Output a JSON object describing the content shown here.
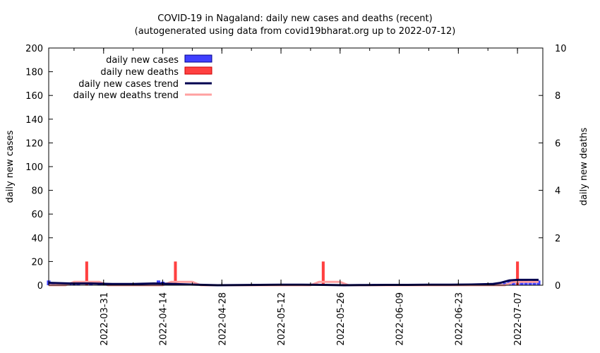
{
  "chart_data": {
    "type": "bar",
    "title": "COVID-19 in Nagaland: daily new cases and deaths (recent)",
    "subtitle": "(autogenerated using data from covid19bharat.org up to 2022-07-12)",
    "ylabel": "daily new cases",
    "y2label": "daily new deaths",
    "ylim": [
      0,
      200
    ],
    "y2lim": [
      0,
      10
    ],
    "yticks": [
      "0",
      "20",
      "40",
      "60",
      "80",
      "100",
      "120",
      "140",
      "160",
      "180",
      "200"
    ],
    "y2ticks": [
      "0",
      "2",
      "4",
      "6",
      "8",
      "10"
    ],
    "x_start": "2022-03-18",
    "x_end": "2022-07-13",
    "xticks": [
      "2022-03-31",
      "2022-04-14",
      "2022-04-28",
      "2022-05-12",
      "2022-05-26",
      "2022-06-09",
      "2022-06-23",
      "2022-07-07"
    ],
    "grid": false,
    "legend_position": "top-left",
    "legend": {
      "cases": "daily new cases",
      "deaths": "daily new deaths",
      "cases_trend": "daily new cases trend",
      "deaths_trend": "daily new deaths trend"
    },
    "colors": {
      "cases": "#4040ff",
      "deaths": "#ff4040",
      "cases_trend": "#000050",
      "deaths_trend": "#ffa0a0"
    },
    "cases": [
      [
        "2022-03-18",
        4
      ],
      [
        "2022-03-19",
        2
      ],
      [
        "2022-03-23",
        1
      ],
      [
        "2022-03-24",
        2
      ],
      [
        "2022-03-25",
        1
      ],
      [
        "2022-03-28",
        1
      ],
      [
        "2022-03-30",
        1
      ],
      [
        "2022-04-01",
        1
      ],
      [
        "2022-04-05",
        1
      ],
      [
        "2022-04-08",
        1
      ],
      [
        "2022-04-10",
        1
      ],
      [
        "2022-04-12",
        1
      ],
      [
        "2022-04-13",
        4
      ],
      [
        "2022-04-14",
        3
      ],
      [
        "2022-04-19",
        1
      ],
      [
        "2022-04-20",
        1
      ],
      [
        "2022-05-08",
        1
      ],
      [
        "2022-05-10",
        1
      ],
      [
        "2022-05-13",
        1
      ],
      [
        "2022-05-19",
        1
      ],
      [
        "2022-06-03",
        1
      ],
      [
        "2022-06-07",
        1
      ],
      [
        "2022-06-14",
        1
      ],
      [
        "2022-06-20",
        1
      ],
      [
        "2022-06-23",
        1
      ],
      [
        "2022-07-01",
        1
      ],
      [
        "2022-07-03",
        1
      ],
      [
        "2022-07-04",
        2
      ],
      [
        "2022-07-05",
        4
      ],
      [
        "2022-07-06",
        5
      ],
      [
        "2022-07-07",
        4
      ],
      [
        "2022-07-08",
        4
      ],
      [
        "2022-07-09",
        5
      ],
      [
        "2022-07-10",
        3
      ],
      [
        "2022-07-11",
        4
      ],
      [
        "2022-07-12",
        4
      ]
    ],
    "deaths": [
      [
        "2022-03-27",
        1
      ],
      [
        "2022-04-17",
        1
      ],
      [
        "2022-05-22",
        1
      ],
      [
        "2022-07-07",
        1
      ]
    ],
    "cases_trend": [
      [
        "2022-03-18",
        2
      ],
      [
        "2022-03-23",
        1.5
      ],
      [
        "2022-03-28",
        1.5
      ],
      [
        "2022-04-02",
        1
      ],
      [
        "2022-04-07",
        1
      ],
      [
        "2022-04-12",
        1.5
      ],
      [
        "2022-04-17",
        1
      ],
      [
        "2022-04-22",
        0.5
      ],
      [
        "2022-04-27",
        0
      ],
      [
        "2022-05-07",
        0.3
      ],
      [
        "2022-05-12",
        0.5
      ],
      [
        "2022-05-17",
        0.5
      ],
      [
        "2022-05-22",
        0.3
      ],
      [
        "2022-05-27",
        0
      ],
      [
        "2022-06-01",
        0.2
      ],
      [
        "2022-06-06",
        0.3
      ],
      [
        "2022-06-11",
        0.3
      ],
      [
        "2022-06-16",
        0.4
      ],
      [
        "2022-06-21",
        0.5
      ],
      [
        "2022-06-26",
        0.6
      ],
      [
        "2022-07-01",
        1
      ],
      [
        "2022-07-03",
        2
      ],
      [
        "2022-07-05",
        4
      ],
      [
        "2022-07-07",
        4.5
      ],
      [
        "2022-07-12",
        4.5
      ]
    ],
    "deaths_trend": [
      [
        "2022-03-18",
        0
      ],
      [
        "2022-03-22",
        0
      ],
      [
        "2022-03-24",
        0.14
      ],
      [
        "2022-03-30",
        0.14
      ],
      [
        "2022-04-01",
        0
      ],
      [
        "2022-04-14",
        0
      ],
      [
        "2022-04-16",
        0.14
      ],
      [
        "2022-04-21",
        0.14
      ],
      [
        "2022-04-23",
        0
      ],
      [
        "2022-05-19",
        0
      ],
      [
        "2022-05-21",
        0.14
      ],
      [
        "2022-05-26",
        0.14
      ],
      [
        "2022-05-28",
        0
      ],
      [
        "2022-07-04",
        0
      ],
      [
        "2022-07-06",
        0.14
      ],
      [
        "2022-07-12",
        0.14
      ]
    ]
  }
}
